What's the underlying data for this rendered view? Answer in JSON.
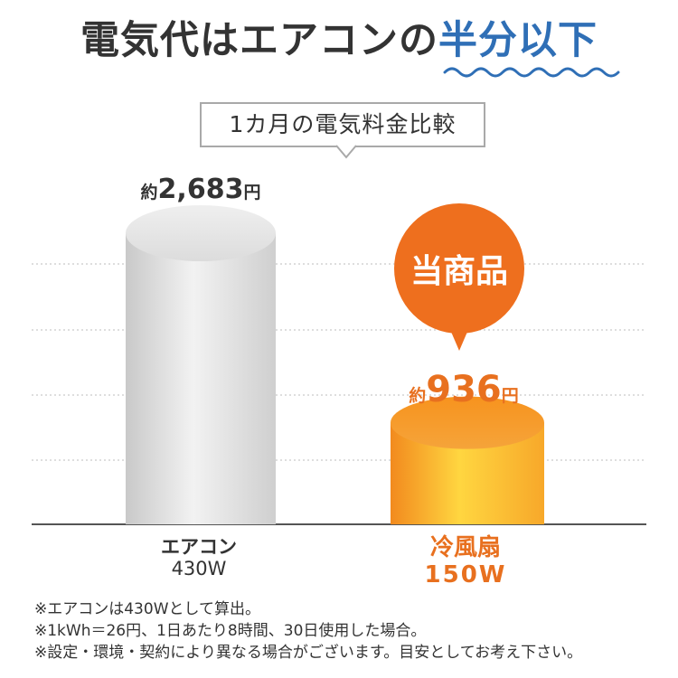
{
  "headline": {
    "prefix": "電気代はエアコンの",
    "accent": "半分以下",
    "accent_color": "#2f6fb6"
  },
  "callout": "1カ月の電気料金比較",
  "badge": "当商品",
  "chart_data": {
    "type": "bar",
    "title": "1カ月の電気料金比較",
    "categories": [
      "エアコン 430W",
      "冷風扇 150W"
    ],
    "values": [
      2683,
      936
    ],
    "unit": "円",
    "ylim": [
      0,
      3000
    ],
    "grid": true,
    "value_labels": [
      {
        "prefix": "約",
        "number": "2,683",
        "suffix": "円"
      },
      {
        "prefix": "約",
        "number": "936",
        "suffix": "円"
      }
    ],
    "colors": [
      "#d6d6d6",
      "#f49a2a"
    ]
  },
  "labels": {
    "ac_name": "エアコン",
    "ac_watt": "430W",
    "fan_name": "冷風扇",
    "fan_watt": "150W"
  },
  "notes": [
    "※エアコンは430Wとして算出。",
    "※1kWh＝26円、1日あたり8時間、30日使用した場合。",
    "※設定・環境・契約により異なる場合がございます。目安としてお考え下さい。"
  ]
}
